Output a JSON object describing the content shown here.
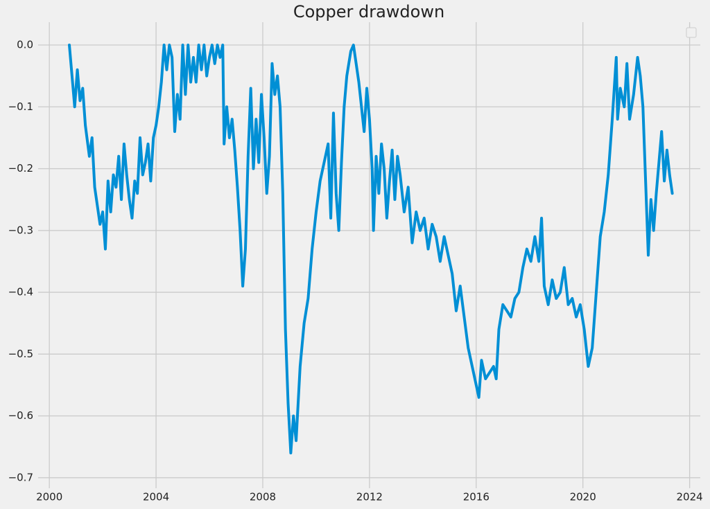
{
  "chart_data": {
    "type": "line",
    "title": "Copper drawdown",
    "color": "#008fd5",
    "grid": true,
    "xlim": [
      1999.58,
      2024.4
    ],
    "xticks": [
      2000,
      2004,
      2008,
      2012,
      2016,
      2020,
      2024
    ],
    "ylim": [
      -0.717,
      0.037
    ],
    "yticks": [
      {
        "value": 0,
        "label": "0.0"
      },
      {
        "value": -0.1,
        "label": "−0.1"
      },
      {
        "value": -0.2,
        "label": "−0.2"
      },
      {
        "value": -0.3,
        "label": "−0.3"
      },
      {
        "value": -0.4,
        "label": "−0.4"
      },
      {
        "value": -0.5,
        "label": "−0.5"
      },
      {
        "value": -0.6,
        "label": "−0.6"
      },
      {
        "value": -0.7,
        "label": "−0.7"
      }
    ],
    "x": [
      2000.75,
      2000.85,
      2000.95,
      2001.05,
      2001.15,
      2001.25,
      2001.35,
      2001.5,
      2001.6,
      2001.7,
      2001.8,
      2001.9,
      2002.0,
      2002.1,
      2002.2,
      2002.3,
      2002.4,
      2002.5,
      2002.6,
      2002.7,
      2002.8,
      2002.9,
      2003.0,
      2003.1,
      2003.2,
      2003.3,
      2003.4,
      2003.5,
      2003.6,
      2003.7,
      2003.8,
      2003.9,
      2004.0,
      2004.1,
      2004.2,
      2004.3,
      2004.4,
      2004.5,
      2004.6,
      2004.7,
      2004.8,
      2004.9,
      2005.0,
      2005.1,
      2005.2,
      2005.3,
      2005.4,
      2005.5,
      2005.6,
      2005.7,
      2005.8,
      2005.9,
      2006.0,
      2006.1,
      2006.2,
      2006.3,
      2006.4,
      2006.5,
      2006.55,
      2006.65,
      2006.75,
      2006.85,
      2006.95,
      2007.05,
      2007.15,
      2007.25,
      2007.35,
      2007.45,
      2007.55,
      2007.65,
      2007.75,
      2007.85,
      2007.95,
      2008.05,
      2008.15,
      2008.25,
      2008.35,
      2008.45,
      2008.55,
      2008.65,
      2008.75,
      2008.85,
      2008.95,
      2009.05,
      2009.15,
      2009.25,
      2009.4,
      2009.55,
      2009.7,
      2009.85,
      2010.0,
      2010.15,
      2010.3,
      2010.45,
      2010.55,
      2010.65,
      2010.75,
      2010.85,
      2010.95,
      2011.05,
      2011.15,
      2011.3,
      2011.4,
      2011.5,
      2011.6,
      2011.7,
      2011.8,
      2011.9,
      2012.0,
      2012.1,
      2012.15,
      2012.25,
      2012.35,
      2012.45,
      2012.55,
      2012.65,
      2012.75,
      2012.85,
      2012.95,
      2013.05,
      2013.15,
      2013.3,
      2013.45,
      2013.6,
      2013.75,
      2013.9,
      2014.05,
      2014.2,
      2014.35,
      2014.5,
      2014.65,
      2014.8,
      2014.95,
      2015.1,
      2015.25,
      2015.4,
      2015.55,
      2015.7,
      2015.85,
      2016.0,
      2016.1,
      2016.2,
      2016.35,
      2016.5,
      2016.65,
      2016.75,
      2016.85,
      2017.0,
      2017.15,
      2017.3,
      2017.45,
      2017.6,
      2017.75,
      2017.9,
      2018.05,
      2018.2,
      2018.35,
      2018.45,
      2018.55,
      2018.7,
      2018.85,
      2019.0,
      2019.15,
      2019.3,
      2019.45,
      2019.6,
      2019.75,
      2019.9,
      2020.05,
      2020.2,
      2020.35,
      2020.5,
      2020.65,
      2020.8,
      2020.95,
      2021.1,
      2021.25,
      2021.3,
      2021.4,
      2021.55,
      2021.65,
      2021.75,
      2021.9,
      2022.05,
      2022.15,
      2022.25,
      2022.35,
      2022.45,
      2022.55,
      2022.65,
      2022.75,
      2022.85,
      2022.95,
      2023.05,
      2023.15,
      2023.25,
      2023.35
    ],
    "values": [
      0.0,
      -0.05,
      -0.1,
      -0.04,
      -0.09,
      -0.07,
      -0.13,
      -0.18,
      -0.15,
      -0.23,
      -0.26,
      -0.29,
      -0.27,
      -0.33,
      -0.22,
      -0.27,
      -0.21,
      -0.23,
      -0.18,
      -0.25,
      -0.16,
      -0.21,
      -0.25,
      -0.28,
      -0.22,
      -0.24,
      -0.15,
      -0.21,
      -0.19,
      -0.16,
      -0.22,
      -0.15,
      -0.13,
      -0.1,
      -0.06,
      0.0,
      -0.04,
      0.0,
      -0.02,
      -0.14,
      -0.08,
      -0.12,
      0.0,
      -0.08,
      0.0,
      -0.06,
      -0.02,
      -0.06,
      0.0,
      -0.04,
      0.0,
      -0.05,
      -0.02,
      0.0,
      -0.03,
      0.0,
      -0.02,
      0.0,
      -0.16,
      -0.1,
      -0.15,
      -0.12,
      -0.17,
      -0.23,
      -0.3,
      -0.39,
      -0.33,
      -0.18,
      -0.07,
      -0.2,
      -0.12,
      -0.19,
      -0.08,
      -0.15,
      -0.24,
      -0.18,
      -0.03,
      -0.08,
      -0.05,
      -0.1,
      -0.24,
      -0.46,
      -0.58,
      -0.66,
      -0.6,
      -0.64,
      -0.52,
      -0.45,
      -0.41,
      -0.33,
      -0.27,
      -0.22,
      -0.19,
      -0.16,
      -0.28,
      -0.11,
      -0.24,
      -0.3,
      -0.19,
      -0.1,
      -0.05,
      -0.01,
      0.0,
      -0.03,
      -0.06,
      -0.1,
      -0.14,
      -0.07,
      -0.12,
      -0.2,
      -0.3,
      -0.18,
      -0.24,
      -0.16,
      -0.2,
      -0.28,
      -0.22,
      -0.17,
      -0.25,
      -0.18,
      -0.21,
      -0.27,
      -0.23,
      -0.32,
      -0.27,
      -0.3,
      -0.28,
      -0.33,
      -0.29,
      -0.31,
      -0.35,
      -0.31,
      -0.34,
      -0.37,
      -0.43,
      -0.39,
      -0.44,
      -0.49,
      -0.52,
      -0.55,
      -0.57,
      -0.51,
      -0.54,
      -0.53,
      -0.52,
      -0.54,
      -0.46,
      -0.42,
      -0.43,
      -0.44,
      -0.41,
      -0.4,
      -0.36,
      -0.33,
      -0.35,
      -0.31,
      -0.35,
      -0.28,
      -0.39,
      -0.42,
      -0.38,
      -0.41,
      -0.4,
      -0.36,
      -0.42,
      -0.41,
      -0.44,
      -0.42,
      -0.46,
      -0.52,
      -0.49,
      -0.4,
      -0.31,
      -0.27,
      -0.21,
      -0.12,
      -0.02,
      -0.12,
      -0.07,
      -0.1,
      -0.03,
      -0.12,
      -0.08,
      -0.02,
      -0.05,
      -0.1,
      -0.22,
      -0.34,
      -0.25,
      -0.3,
      -0.24,
      -0.19,
      -0.14,
      -0.22,
      -0.17,
      -0.21,
      -0.24
    ]
  }
}
